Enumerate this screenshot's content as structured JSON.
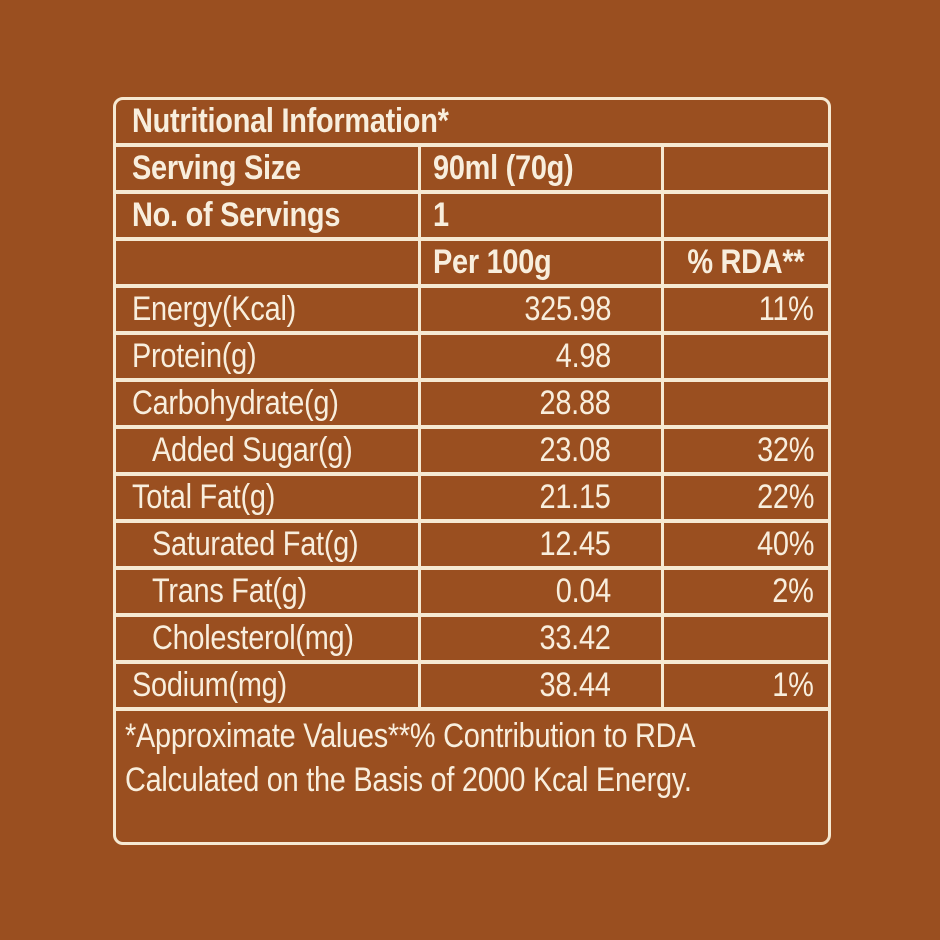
{
  "colors": {
    "background": "#9a4f20",
    "border_line": "#f6e9d2",
    "text": "#f8eedd"
  },
  "table": {
    "title": "Nutritional Information*",
    "serving_size": {
      "label": "Serving Size",
      "value": "90ml (70g)"
    },
    "servings": {
      "label": "No. of Servings",
      "value": "1"
    },
    "column_headers": {
      "per": "Per 100g",
      "rda": "% RDA**"
    },
    "rows": [
      {
        "label": "Energy(Kcal)",
        "value": "325.98",
        "rda": "11%",
        "indent": false
      },
      {
        "label": "Protein(g)",
        "value": "4.98",
        "rda": "",
        "indent": false
      },
      {
        "label": "Carbohydrate(g)",
        "value": "28.88",
        "rda": "",
        "indent": false
      },
      {
        "label": "Added Sugar(g)",
        "value": "23.08",
        "rda": "32%",
        "indent": true
      },
      {
        "label": "Total Fat(g)",
        "value": "21.15",
        "rda": "22%",
        "indent": false
      },
      {
        "label": "Saturated Fat(g)",
        "value": "12.45",
        "rda": "40%",
        "indent": true
      },
      {
        "label": "Trans Fat(g)",
        "value": "0.04",
        "rda": "2%",
        "indent": true
      },
      {
        "label": "Cholesterol(mg)",
        "value": "33.42",
        "rda": "",
        "indent": true
      },
      {
        "label": "Sodium(mg)",
        "value": "38.44",
        "rda": "1%",
        "indent": false
      }
    ],
    "footnote_line1": "*Approximate Values**% Contribution to RDA",
    "footnote_line2": "Calculated on the Basis of 2000 Kcal Energy."
  }
}
